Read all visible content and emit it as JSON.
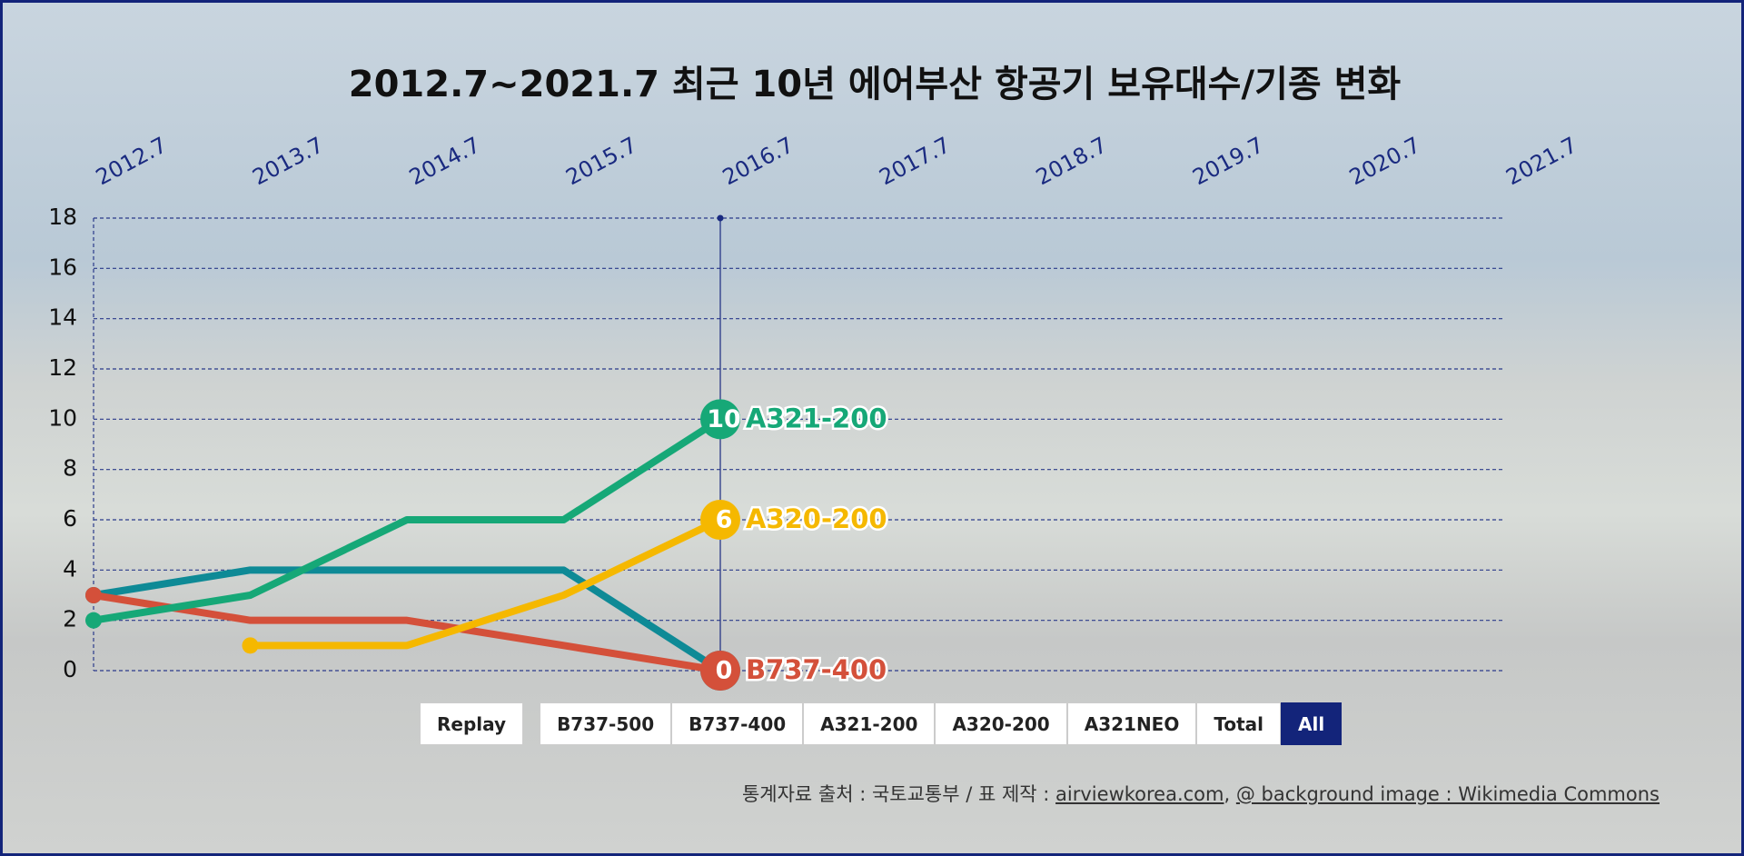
{
  "chart_data": {
    "type": "line",
    "title": "2012.7~2021.7 최근 10년 에어부산 항공기 보유대수/기종 변화",
    "categories": [
      "2012.7",
      "2013.7",
      "2014.7",
      "2015.7",
      "2016.7",
      "2017.7",
      "2018.7",
      "2019.7",
      "2020.7",
      "2021.7"
    ],
    "series": [
      {
        "name": "B737-500",
        "color": "#0e8a96",
        "end_label": false,
        "values": [
          3,
          4,
          4,
          4,
          0,
          null,
          null,
          null,
          null,
          null
        ]
      },
      {
        "name": "B737-400",
        "color": "#d4503a",
        "end_label": true,
        "values": [
          3,
          2,
          2,
          1,
          0,
          null,
          null,
          null,
          null,
          null
        ]
      },
      {
        "name": "A321-200",
        "color": "#16a877",
        "end_label": true,
        "values": [
          2,
          3,
          6,
          6,
          10,
          null,
          null,
          null,
          null,
          null
        ]
      },
      {
        "name": "A320-200",
        "color": "#f5b800",
        "end_label": true,
        "values": [
          null,
          1,
          1,
          3,
          6,
          null,
          null,
          null,
          null,
          null
        ]
      }
    ],
    "ylim": [
      0,
      18
    ],
    "yticks": [
      0,
      2,
      4,
      6,
      8,
      10,
      12,
      14,
      16,
      18
    ],
    "grid": true,
    "buttons": [
      "Replay",
      "B737-500",
      "B737-400",
      "A321-200",
      "A320-200",
      "A321NEO",
      "Total",
      "All"
    ],
    "selected_button": 7,
    "source": {
      "prefix": "통계자료 출처 : 국토교통부 / 표 제작 : ",
      "link": "airviewkorea.com",
      "separator": ", ",
      "credit": "@ background image : Wikimedia Commons"
    }
  }
}
